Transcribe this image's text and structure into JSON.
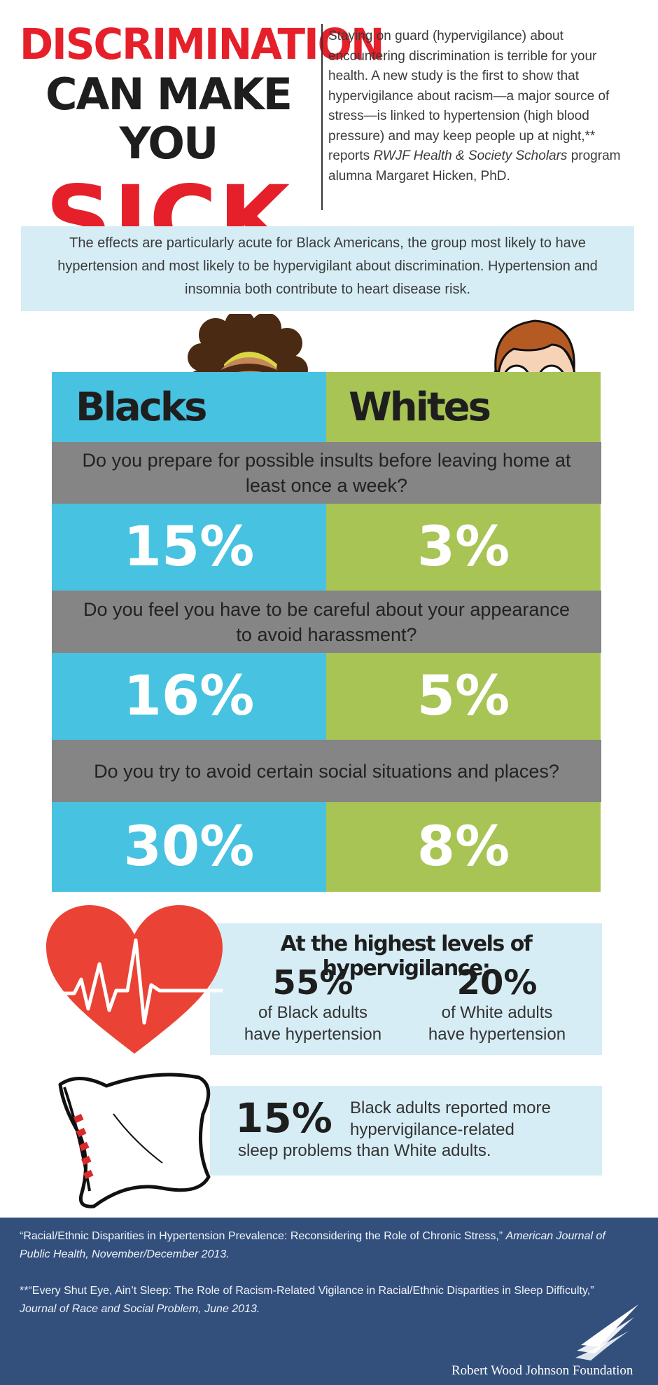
{
  "header": {
    "title_line1": "DISCRIMINATION",
    "title_line2": "CAN MAKE YOU",
    "title_line3": "SICK",
    "intro_part1": "Staying on guard (hypervigilance) about encountering discrimination is terrible for your health. A new study is the first to show that hypervigilance about racism—a major source of stress—is linked to hypertension (high blood pressure) and may keep people up at night,** reports ",
    "intro_emphasis": "RWJF Health & Society Scholars",
    "intro_part2": " program alumna Margaret Hicken, PhD."
  },
  "effects_text": "The effects are particularly acute for Black Americans, the group most likely to have hypertension and most likely to be hypervigilant about discrimination. Hypertension and insomnia both contribute to heart disease risk.",
  "comparison": {
    "col_black": "Blacks",
    "col_white": "Whites",
    "rows": [
      {
        "question": "Do you prepare for possible insults before leaving home at least once a week?",
        "black": "15%",
        "white": "3%"
      },
      {
        "question": "Do you feel you have to be careful about your appearance to avoid harassment?",
        "black": "16%",
        "white": "5%"
      },
      {
        "question": "Do you try to avoid certain social situations and places?",
        "black": "30%",
        "white": "8%"
      }
    ]
  },
  "hypertension": {
    "title": "At the highest levels of hypervigilance:",
    "black_value": "55%",
    "black_label_1": "of Black adults",
    "black_label_2": "have hypertension",
    "white_value": "20%",
    "white_label_1": "of White adults",
    "white_label_2": "have hypertension"
  },
  "sleep": {
    "value": "15%",
    "text_1": "Black adults reported more hypervigilance-related",
    "text_2": "sleep problems than White adults."
  },
  "footer": {
    "ref1_text": "“Racial/Ethnic Disparities in Hypertension Prevalence: Reconsidering the Role of Chronic Stress,” ",
    "ref1_em": "American Journal of Public Health, November/December 2013.",
    "ref2_text": "**“Every Shut Eye, Ain’t Sleep: The Role of Racism-Related Vigilance in Racial/Ethnic Disparities in Sleep Difficulty,” ",
    "ref2_em": "Journal of Race and Social Problem, June 2013.",
    "foundation": "Robert Wood Johnson Foundation"
  },
  "colors": {
    "title_red": "#e5202a",
    "black_col": "#47c2e0",
    "white_col": "#a8c455",
    "question_gray": "#858585",
    "panel_blue": "#d6edf5",
    "footer_navy": "#33507d"
  },
  "icons": [
    "girl-face-icon",
    "boy-face-icon",
    "heart-ekg-icon",
    "pillow-icon",
    "rwjf-logo-icon"
  ]
}
